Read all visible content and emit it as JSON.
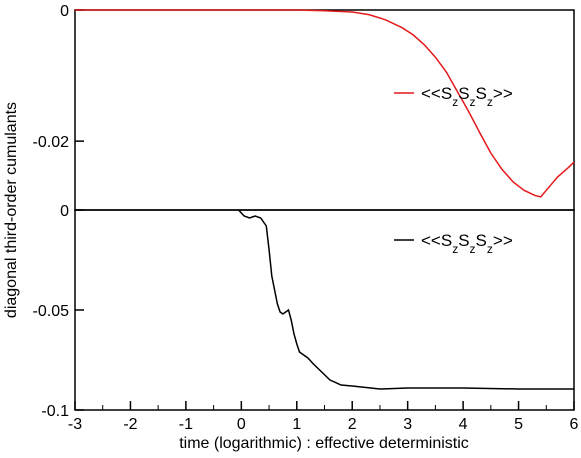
{
  "chart_data": [
    {
      "type": "line",
      "panel": "top",
      "xlim": [
        -3,
        6
      ],
      "ylim": [
        -0.0305,
        0
      ],
      "y_ticks": [
        0,
        -0.02
      ],
      "y_tick_labels": [
        "0",
        "-0.02"
      ],
      "grid": false,
      "legend_position": "right",
      "series": [
        {
          "name": "<<SzSzSz>>",
          "label_base": [
            "<<S",
            "S",
            "S",
            ">>"
          ],
          "label_sub": "z",
          "color": "#e41a1c",
          "x": [
            -3,
            -2,
            -1,
            0,
            1,
            1.5,
            2,
            2.3,
            2.6,
            2.9,
            3.1,
            3.3,
            3.5,
            3.7,
            3.9,
            4.1,
            4.3,
            4.5,
            4.7,
            4.9,
            5.1,
            5.3,
            5.4,
            5.5,
            5.7,
            5.9,
            6.0
          ],
          "y": [
            0,
            0,
            0,
            0,
            0,
            -0.0001,
            -0.0003,
            -0.0007,
            -0.0015,
            -0.0027,
            -0.0038,
            -0.0053,
            -0.0072,
            -0.0095,
            -0.0125,
            -0.0155,
            -0.0187,
            -0.0218,
            -0.0243,
            -0.0262,
            -0.0275,
            -0.0283,
            -0.0285,
            -0.0275,
            -0.0255,
            -0.024,
            -0.0232
          ]
        }
      ]
    },
    {
      "type": "line",
      "panel": "bottom",
      "xlim": [
        -3,
        6
      ],
      "ylim": [
        -0.1,
        0
      ],
      "x_ticks": [
        -3,
        -2,
        -1,
        0,
        1,
        2,
        3,
        4,
        5,
        6
      ],
      "x_tick_labels": [
        "-3",
        "-2",
        "-1",
        "0",
        "1",
        "2",
        "3",
        "4",
        "5",
        "6"
      ],
      "y_ticks": [
        0,
        -0.05,
        -0.1
      ],
      "y_tick_labels": [
        "0",
        "-0.05",
        "-0.1"
      ],
      "grid": false,
      "legend_position": "top-right",
      "series": [
        {
          "name": "<<SzSzSz>>",
          "label_base": [
            "<<S",
            "S",
            "S",
            ">>"
          ],
          "label_sub": "z",
          "color": "#000000",
          "x": [
            -0.05,
            0.05,
            0.15,
            0.25,
            0.35,
            0.45,
            0.5,
            0.55,
            0.6,
            0.65,
            0.7,
            0.75,
            0.8,
            0.85,
            0.9,
            0.95,
            1.0,
            1.05,
            1.1,
            1.2,
            1.3,
            1.45,
            1.6,
            1.8,
            2.0,
            2.5,
            3.0,
            4.0,
            5.0,
            6.0
          ],
          "y": [
            0,
            -0.003,
            -0.004,
            -0.003,
            -0.004,
            -0.008,
            -0.02,
            -0.033,
            -0.04,
            -0.047,
            -0.051,
            -0.052,
            -0.051,
            -0.05,
            -0.055,
            -0.062,
            -0.067,
            -0.071,
            -0.072,
            -0.074,
            -0.077,
            -0.081,
            -0.085,
            -0.0875,
            -0.088,
            -0.0895,
            -0.089,
            -0.089,
            -0.0895,
            -0.0895
          ]
        }
      ]
    }
  ],
  "shared": {
    "ylabel": "diagonal third-order cumulants",
    "xlabel": "time (logarithmic) : effective deterministic"
  }
}
